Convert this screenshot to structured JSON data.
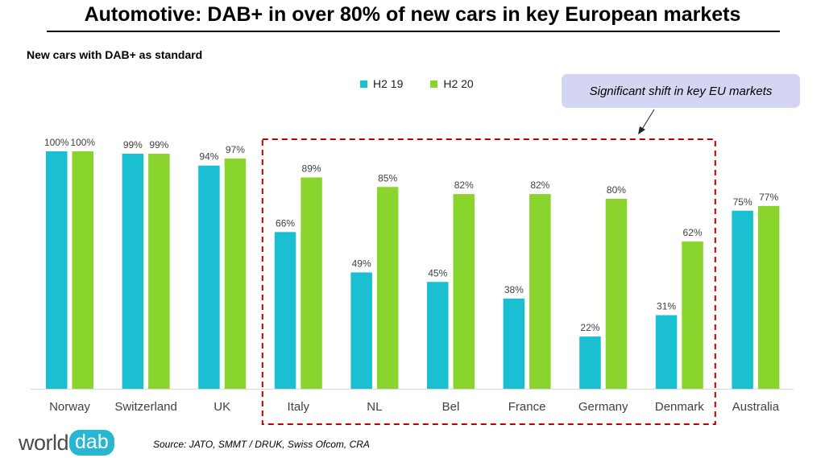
{
  "title": "Automotive: DAB+ in over 80% of new cars in key European markets",
  "subtitle": "New cars with DAB+ as standard",
  "callout": "Significant shift in key EU markets",
  "source": "Source: JATO, SMMT / DRUK, Swiss Ofcom, CRA",
  "logo": {
    "part1": "world",
    "part2": "dab"
  },
  "colors": {
    "h2_19": "#1abfd1",
    "h2_20": "#8ad42e",
    "highlight_box": "#c00000",
    "callout_bg": "#d4d5f2"
  },
  "chart_data": {
    "type": "bar",
    "categories": [
      "Norway",
      "Switzerland",
      "UK",
      "Italy",
      "NL",
      "Bel",
      "France",
      "Germany",
      "Denmark",
      "Australia"
    ],
    "series": [
      {
        "name": "H2 19",
        "values": [
          100,
          99,
          94,
          66,
          49,
          45,
          38,
          22,
          31,
          75
        ],
        "labels": [
          "100%",
          "99%",
          "94%",
          "66%",
          "49%",
          "45%",
          "38%",
          "22%",
          "31%",
          "75%"
        ]
      },
      {
        "name": "H2 20",
        "values": [
          100,
          99,
          97,
          89,
          85,
          82,
          82,
          80,
          62,
          77
        ],
        "labels": [
          "100%",
          "99%",
          "97%",
          "89%",
          "85%",
          "82%",
          "82%",
          "80%",
          "62%",
          "77%"
        ]
      }
    ],
    "ylim": [
      0,
      100
    ],
    "legend": "top-center",
    "grid": false,
    "highlighted_categories": [
      "Italy",
      "NL",
      "Bel",
      "France",
      "Germany",
      "Denmark"
    ]
  }
}
